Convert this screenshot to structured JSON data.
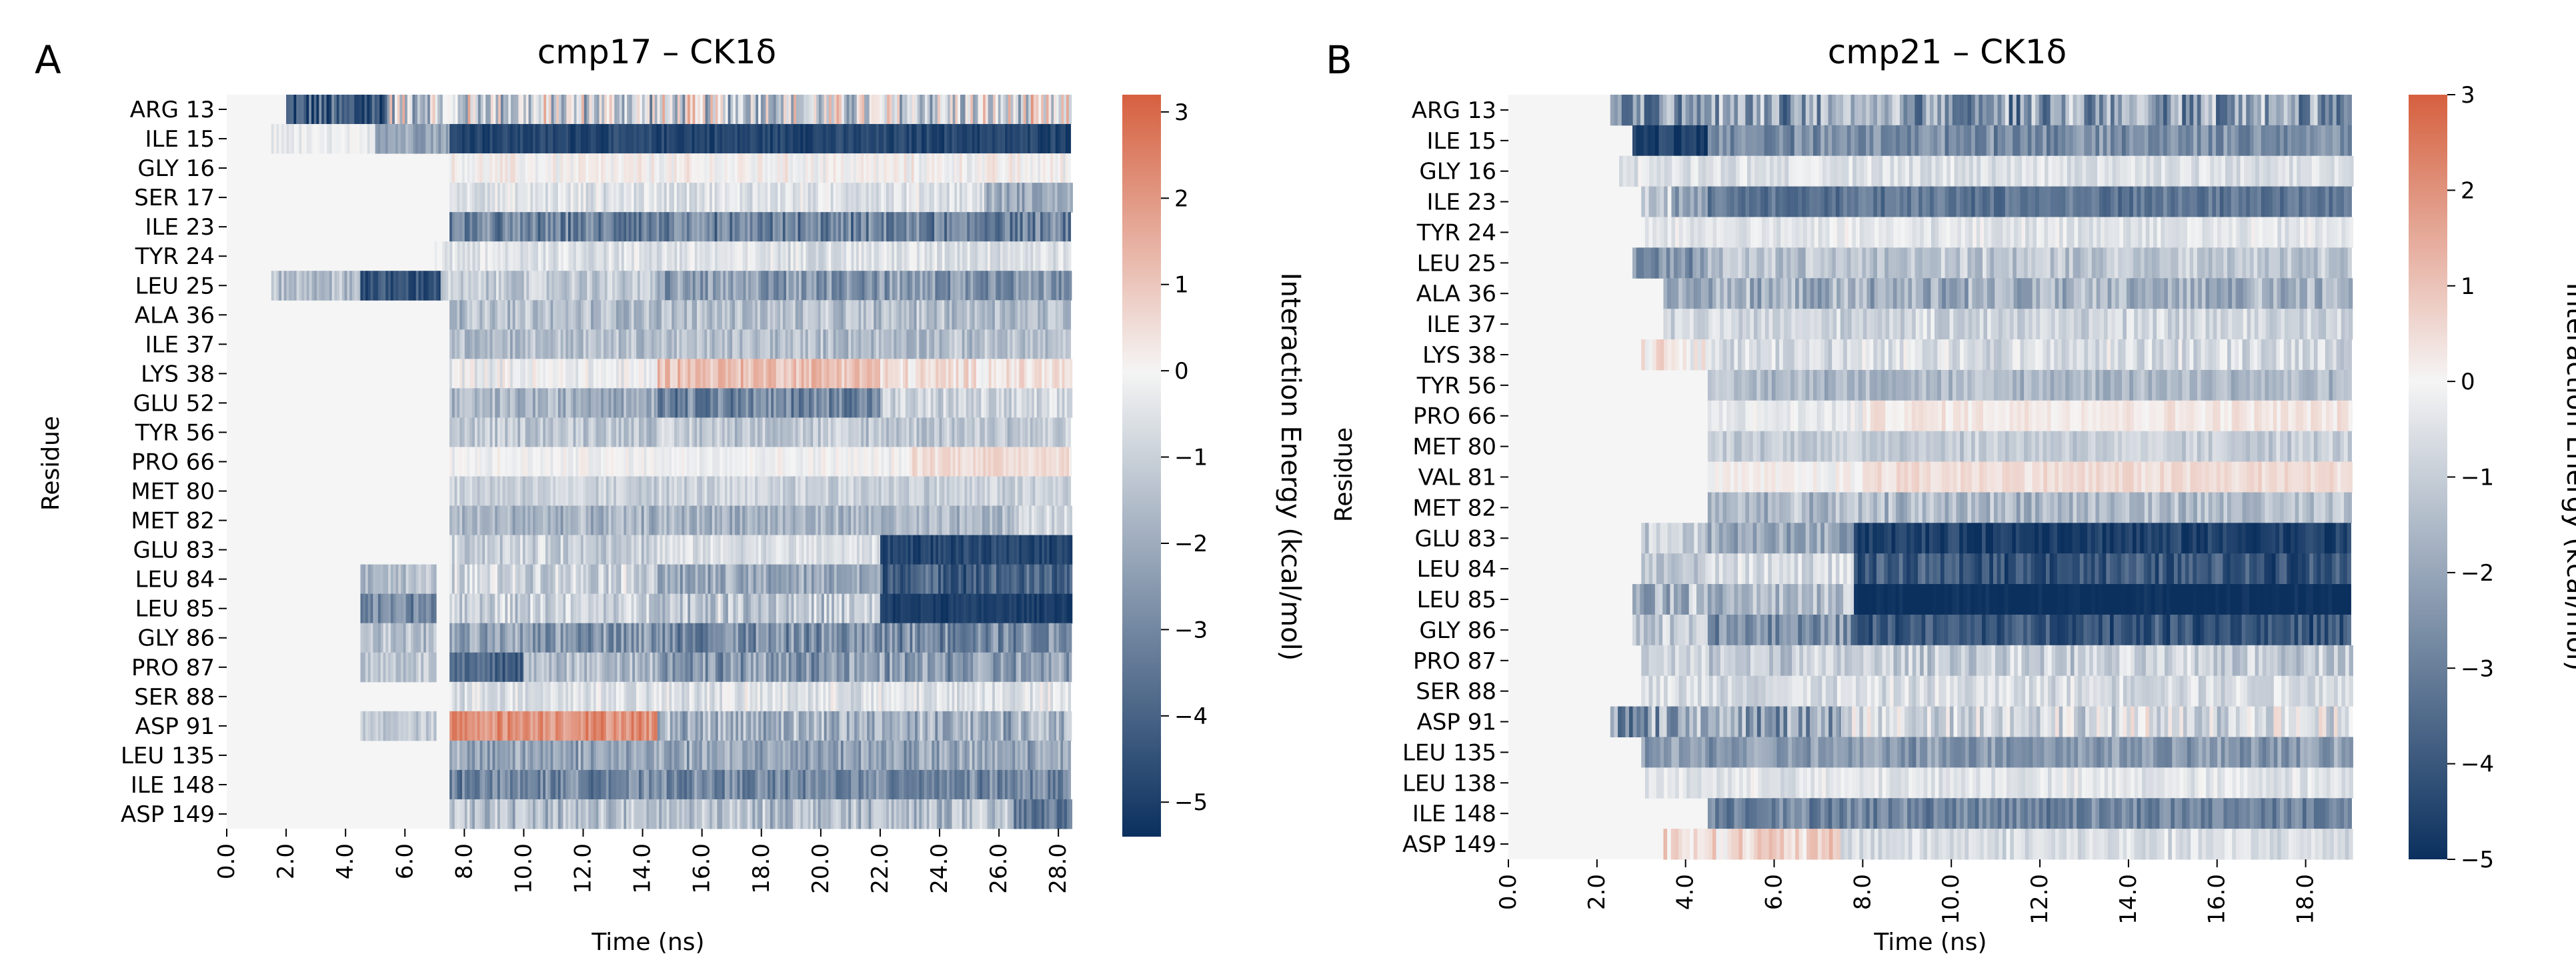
{
  "colors": {
    "neg": "#0b305e",
    "mid": "#f5f5f5",
    "pos": "#d6603f"
  },
  "chart_data": [
    {
      "type": "heatmap",
      "panel_letter": "A",
      "title": "cmp17 – CK1δ",
      "xlabel": "Time (ns)",
      "ylabel": "Residue",
      "colorbar_label": "Interaction Energy (kcal/mol)",
      "colorbar_ticks": [
        "3",
        "2",
        "1",
        "0",
        "−1",
        "−2",
        "−3",
        "−4",
        "−5"
      ],
      "colorbar_range": [
        -5.4,
        3.2
      ],
      "xlim": [
        0,
        28.4
      ],
      "x_ticks": [
        "0.0",
        "2.0",
        "4.0",
        "6.0",
        "8.0",
        "10.0",
        "12.0",
        "14.0",
        "16.0",
        "18.0",
        "20.0",
        "22.0",
        "24.0",
        "26.0",
        "28.0"
      ],
      "residues": [
        "ARG 13",
        "ILE 15",
        "GLY 16",
        "SER 17",
        "ILE 23",
        "TYR 24",
        "LEU 25",
        "ALA 36",
        "ILE 37",
        "LYS 38",
        "GLU 52",
        "TYR 56",
        "PRO 66",
        "MET 80",
        "MET 82",
        "GLU 83",
        "LEU 84",
        "LEU 85",
        "GLY 86",
        "PRO 87",
        "SER 88",
        "ASP 91",
        "LEU 135",
        "ILE 148",
        "ASP 149"
      ],
      "segments": [
        [
          [
            2.0,
            5.4,
            -4.5,
            2.5
          ],
          [
            5.4,
            28.4,
            -0.8,
            3.0
          ]
        ],
        [
          [
            1.5,
            5.0,
            -0.3,
            0.5
          ],
          [
            5.0,
            7.5,
            -2.0,
            1.0
          ],
          [
            7.5,
            28.4,
            -4.8,
            0.6
          ]
        ],
        [
          [
            7.5,
            28.4,
            0.0,
            0.7
          ]
        ],
        [
          [
            7.5,
            25.5,
            -0.5,
            0.8
          ],
          [
            25.5,
            28.4,
            -2.0,
            1.0
          ]
        ],
        [
          [
            7.5,
            28.4,
            -3.2,
            1.4
          ]
        ],
        [
          [
            7.0,
            28.4,
            -0.5,
            0.8
          ]
        ],
        [
          [
            1.5,
            4.5,
            -1.5,
            1.0
          ],
          [
            4.5,
            7.2,
            -4.5,
            1.0
          ],
          [
            7.2,
            14.5,
            -1.2,
            1.0
          ],
          [
            14.5,
            28.4,
            -2.5,
            1.4
          ]
        ],
        [
          [
            7.5,
            28.4,
            -1.5,
            1.1
          ]
        ],
        [
          [
            7.5,
            28.4,
            -1.5,
            1.0
          ]
        ],
        [
          [
            7.5,
            14.5,
            -0.2,
            0.8
          ],
          [
            14.5,
            22.0,
            1.2,
            0.8
          ],
          [
            22.0,
            28.4,
            0.4,
            0.8
          ]
        ],
        [
          [
            7.5,
            14.5,
            -1.8,
            1.1
          ],
          [
            14.5,
            22.0,
            -3.0,
            1.4
          ],
          [
            22.0,
            28.4,
            -1.0,
            1.0
          ]
        ],
        [
          [
            7.5,
            28.4,
            -1.2,
            1.0
          ]
        ],
        [
          [
            7.5,
            23.0,
            -0.1,
            0.5
          ],
          [
            23.0,
            28.4,
            0.6,
            0.5
          ]
        ],
        [
          [
            7.5,
            28.4,
            -1.0,
            0.8
          ]
        ],
        [
          [
            7.5,
            26.5,
            -1.8,
            1.0
          ],
          [
            26.5,
            28.4,
            -0.8,
            0.8
          ]
        ],
        [
          [
            7.5,
            14.5,
            -1.0,
            1.0
          ],
          [
            14.5,
            22.0,
            -0.6,
            0.7
          ],
          [
            22.0,
            28.4,
            -4.8,
            0.6
          ]
        ],
        [
          [
            4.5,
            7.0,
            -1.5,
            1.0
          ],
          [
            7.5,
            14.5,
            -0.8,
            1.2
          ],
          [
            14.5,
            22.0,
            -2.2,
            1.3
          ],
          [
            22.0,
            28.4,
            -4.0,
            1.2
          ]
        ],
        [
          [
            4.5,
            7.0,
            -3.0,
            1.2
          ],
          [
            7.5,
            14.5,
            -1.0,
            1.2
          ],
          [
            14.5,
            22.0,
            -1.2,
            1.5
          ],
          [
            22.0,
            28.4,
            -5.0,
            0.4
          ]
        ],
        [
          [
            4.5,
            7.0,
            -1.5,
            1.0
          ],
          [
            7.5,
            14.5,
            -2.5,
            1.4
          ],
          [
            14.5,
            28.4,
            -2.8,
            1.5
          ]
        ],
        [
          [
            4.5,
            7.0,
            -1.2,
            1.0
          ],
          [
            7.5,
            10.0,
            -4.0,
            1.3
          ],
          [
            10.0,
            14.5,
            -1.5,
            1.2
          ],
          [
            14.5,
            28.4,
            -2.5,
            1.5
          ]
        ],
        [
          [
            7.5,
            28.4,
            -0.5,
            0.9
          ]
        ],
        [
          [
            4.5,
            7.0,
            -1.2,
            0.8
          ],
          [
            7.5,
            14.5,
            2.2,
            0.9
          ],
          [
            14.5,
            28.4,
            -1.8,
            1.6
          ]
        ],
        [
          [
            7.5,
            28.4,
            -2.2,
            1.3
          ]
        ],
        [
          [
            7.5,
            28.4,
            -3.0,
            1.2
          ]
        ],
        [
          [
            7.5,
            26.5,
            -1.5,
            1.3
          ],
          [
            26.5,
            28.4,
            -3.5,
            1.2
          ]
        ]
      ]
    },
    {
      "type": "heatmap",
      "panel_letter": "B",
      "title": "cmp21 – CK1δ",
      "xlabel": "Time (ns)",
      "ylabel": "Residue",
      "colorbar_label": "Interaction Energy (kcal/mol)",
      "colorbar_ticks": [
        "3",
        "2",
        "1",
        "0",
        "−1",
        "−2",
        "−3",
        "−4",
        "−5"
      ],
      "colorbar_range": [
        -5.0,
        3.0
      ],
      "xlim": [
        0,
        19
      ],
      "x_ticks": [
        "0.0",
        "2.0",
        "4.0",
        "6.0",
        "8.0",
        "10.0",
        "12.0",
        "14.0",
        "16.0",
        "18.0"
      ],
      "residues": [
        "ARG 13",
        "ILE 15",
        "GLY 16",
        "ILE 23",
        "TYR 24",
        "LEU 25",
        "ALA 36",
        "ILE 37",
        "LYS 38",
        "TYR 56",
        "PRO 66",
        "MET 80",
        "VAL 81",
        "MET 82",
        "GLU 83",
        "LEU 84",
        "LEU 85",
        "GLY 86",
        "PRO 87",
        "SER 88",
        "ASP 91",
        "LEU 135",
        "LEU 138",
        "ILE 148",
        "ASP 149"
      ],
      "segments": [
        [
          [
            2.3,
            4.5,
            -2.5,
            2.0
          ],
          [
            4.5,
            19.0,
            -2.2,
            2.3
          ]
        ],
        [
          [
            2.8,
            4.5,
            -4.6,
            0.8
          ],
          [
            4.5,
            19.0,
            -2.6,
            1.0
          ]
        ],
        [
          [
            2.5,
            19.0,
            -0.5,
            0.6
          ]
        ],
        [
          [
            3.0,
            4.5,
            -1.5,
            1.5
          ],
          [
            4.5,
            19.0,
            -3.2,
            0.8
          ]
        ],
        [
          [
            3.0,
            19.0,
            -0.4,
            0.6
          ]
        ],
        [
          [
            2.8,
            4.5,
            -2.5,
            1.2
          ],
          [
            4.5,
            19.0,
            -1.2,
            0.9
          ]
        ],
        [
          [
            3.5,
            19.0,
            -1.8,
            1.2
          ]
        ],
        [
          [
            3.5,
            19.0,
            -0.8,
            0.8
          ]
        ],
        [
          [
            3.0,
            4.5,
            0.3,
            1.0
          ],
          [
            4.5,
            19.0,
            -0.6,
            0.9
          ]
        ],
        [
          [
            4.5,
            19.0,
            -1.5,
            0.8
          ]
        ],
        [
          [
            4.5,
            8.0,
            -0.3,
            0.5
          ],
          [
            8.0,
            19.0,
            0.3,
            0.4
          ]
        ],
        [
          [
            4.5,
            19.0,
            -1.0,
            0.7
          ]
        ],
        [
          [
            4.5,
            8.0,
            0.0,
            0.5
          ],
          [
            8.0,
            19.0,
            0.5,
            0.4
          ]
        ],
        [
          [
            4.5,
            19.0,
            -1.5,
            1.0
          ]
        ],
        [
          [
            3.0,
            4.5,
            -1.0,
            1.0
          ],
          [
            4.5,
            7.8,
            -2.0,
            1.0
          ],
          [
            7.8,
            19.0,
            -4.6,
            0.7
          ]
        ],
        [
          [
            3.0,
            4.5,
            -1.2,
            1.0
          ],
          [
            4.5,
            7.8,
            -0.6,
            0.8
          ],
          [
            7.8,
            19.0,
            -4.0,
            1.0
          ]
        ],
        [
          [
            2.8,
            4.5,
            -1.5,
            1.5
          ],
          [
            4.5,
            7.8,
            -1.5,
            1.2
          ],
          [
            7.8,
            19.0,
            -5.0,
            0.3
          ]
        ],
        [
          [
            2.8,
            4.5,
            -1.2,
            1.2
          ],
          [
            4.5,
            7.8,
            -2.5,
            1.3
          ],
          [
            7.8,
            19.0,
            -4.0,
            1.0
          ]
        ],
        [
          [
            3.0,
            19.0,
            -1.0,
            1.0
          ]
        ],
        [
          [
            3.0,
            19.0,
            -0.6,
            0.8
          ]
        ],
        [
          [
            2.3,
            7.5,
            -2.2,
            2.5
          ],
          [
            7.5,
            19.0,
            -0.6,
            1.4
          ]
        ],
        [
          [
            3.0,
            19.0,
            -2.3,
            1.0
          ]
        ],
        [
          [
            3.0,
            19.0,
            -0.4,
            0.6
          ]
        ],
        [
          [
            4.5,
            19.0,
            -2.8,
            1.0
          ]
        ],
        [
          [
            3.5,
            7.5,
            0.6,
            0.9
          ],
          [
            7.5,
            19.0,
            -0.6,
            0.7
          ]
        ]
      ]
    }
  ]
}
